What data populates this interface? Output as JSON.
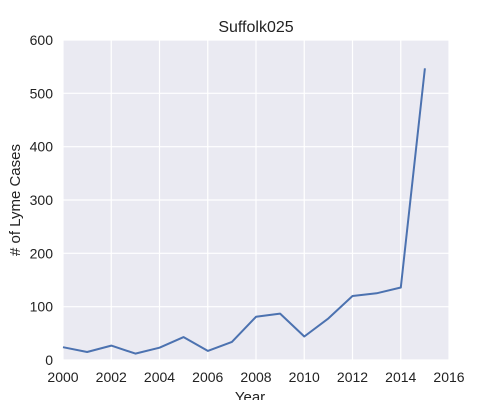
{
  "chart_data": {
    "type": "line",
    "title": "Suffolk025",
    "xlabel": "Year",
    "ylabel": "# of Lyme Cases",
    "xlim": [
      2000,
      2016
    ],
    "ylim": [
      0,
      600
    ],
    "xticks": [
      "2000",
      "2002",
      "2004",
      "2006",
      "2008",
      "2010",
      "2012",
      "2014",
      "2016"
    ],
    "yticks": [
      "0",
      "100",
      "200",
      "300",
      "400",
      "500",
      "600"
    ],
    "grid": true,
    "background": "#eaeaf2",
    "grid_color": "#ffffff",
    "line_color": "#4c72b0",
    "series": [
      {
        "x": [
          2000,
          2001,
          2002,
          2003,
          2004,
          2005,
          2006,
          2007,
          2008,
          2009,
          2010,
          2011,
          2012,
          2013,
          2014,
          2015
        ],
        "values": [
          24,
          15,
          27,
          12,
          23,
          43,
          17,
          34,
          81,
          87,
          44,
          78,
          120,
          125,
          136,
          547
        ]
      }
    ]
  }
}
